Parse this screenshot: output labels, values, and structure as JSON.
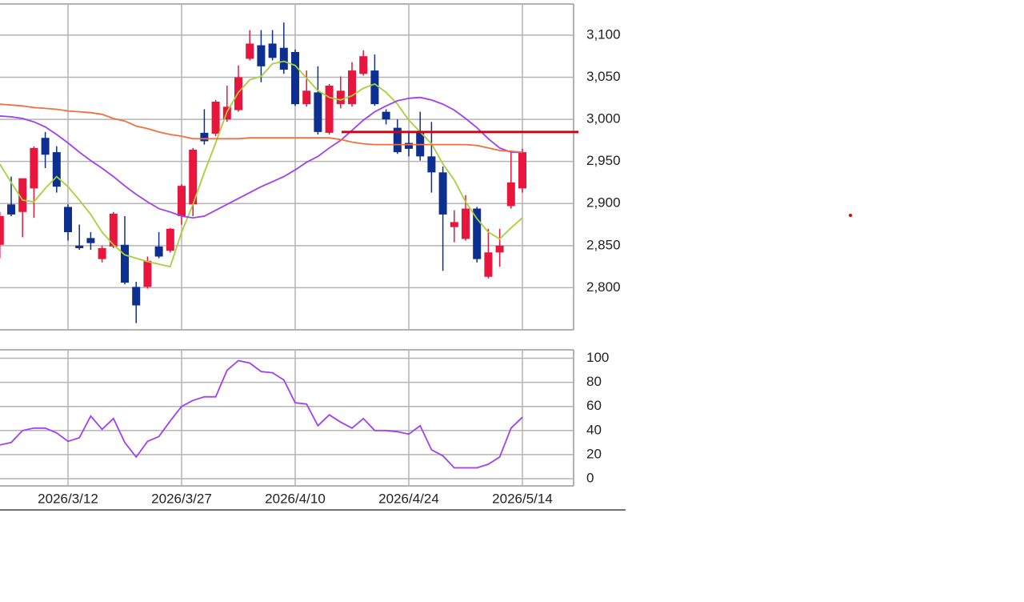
{
  "chart_data": [
    {
      "type": "candlestick",
      "open": [
        2851,
        2899,
        2890,
        2918,
        2978,
        2961,
        2896,
        2850,
        2859,
        2834,
        2849,
        2851,
        2801,
        2801,
        2849,
        2844,
        2885,
        2899,
        2984,
        2983,
        3000,
        3011,
        3072,
        3088,
        3090,
        3085,
        3080,
        3018,
        3032,
        2984,
        3018,
        3018,
        3054,
        3058,
        3009,
        2990,
        2972,
        2985,
        2956,
        2937,
        2872,
        2858,
        2894,
        2813,
        2842,
        2897,
        2918
      ],
      "high": [
        2890,
        2932,
        2930,
        2968,
        2985,
        2968,
        2899,
        2875,
        2866,
        2850,
        2890,
        2885,
        2807,
        2837,
        2866,
        2871,
        2923,
        2966,
        3012,
        3023,
        3040,
        3064,
        3106,
        3106,
        3106,
        3115,
        3083,
        3058,
        3063,
        3042,
        3051,
        3068,
        3082,
        3077,
        3012,
        3000,
        2985,
        3009,
        2997,
        2944,
        2892,
        2910,
        2896,
        2870,
        2870,
        2963,
        2965
      ],
      "low": [
        2835,
        2885,
        2860,
        2883,
        2942,
        2913,
        2856,
        2845,
        2845,
        2830,
        2847,
        2804,
        2758,
        2799,
        2835,
        2842,
        2875,
        2885,
        2970,
        2980,
        2997,
        3009,
        3070,
        3044,
        3070,
        3054,
        3016,
        3015,
        2982,
        2982,
        3013,
        3015,
        3052,
        3016,
        2994,
        2959,
        2956,
        2951,
        2913,
        2820,
        2854,
        2856,
        2830,
        2811,
        2825,
        2894,
        2913
      ],
      "close": [
        2885,
        2887,
        2930,
        2966,
        2958,
        2920,
        2866,
        2847,
        2853,
        2847,
        2888,
        2806,
        2779,
        2832,
        2837,
        2870,
        2921,
        2964,
        2974,
        3021,
        3015,
        3050,
        3090,
        3063,
        3073,
        3059,
        3018,
        3034,
        2985,
        3040,
        3034,
        3058,
        3075,
        3018,
        3000,
        2961,
        2965,
        2956,
        2937,
        2887,
        2878,
        2894,
        2834,
        2842,
        2850,
        2925,
        2961
      ],
      "up_color": "#e8163c",
      "down_color": "#0d2f8f",
      "lines": [
        {
          "color": "#a5d13a",
          "values": [
            2947,
            2925,
            2904,
            2902,
            2918,
            2932,
            2920,
            2904,
            2887,
            2866,
            2851,
            2839,
            2835,
            2831,
            2828,
            2825,
            2866,
            2899,
            2937,
            2972,
            3009,
            3032,
            3047,
            3051,
            3066,
            3069,
            3064,
            3049,
            3034,
            3026,
            3023,
            3028,
            3037,
            3042,
            3032,
            3018,
            2999,
            2985,
            2971,
            2947,
            2928,
            2902,
            2882,
            2866,
            2858,
            2871,
            2883
          ]
        },
        {
          "color": "#a040f0",
          "values": [
            3004,
            3003,
            3001,
            2997,
            2991,
            2982,
            2972,
            2961,
            2951,
            2942,
            2932,
            2921,
            2911,
            2902,
            2894,
            2890,
            2885,
            2883,
            2885,
            2892,
            2899,
            2906,
            2913,
            2920,
            2926,
            2932,
            2940,
            2949,
            2956,
            2966,
            2975,
            2987,
            2999,
            3009,
            3016,
            3022,
            3025,
            3026,
            3023,
            3018,
            3011,
            3001,
            2990,
            2977,
            2966,
            2961,
            2961
          ]
        },
        {
          "color": "#f07040",
          "values": [
            3018,
            3017,
            3016,
            3014,
            3013,
            3012,
            3010,
            3009,
            3008,
            3006,
            3001,
            2998,
            2992,
            2989,
            2985,
            2982,
            2980,
            2977,
            2977,
            2977,
            2977,
            2977,
            2978,
            2978,
            2978,
            2978,
            2978,
            2978,
            2978,
            2978,
            2976,
            2973,
            2971,
            2970,
            2970,
            2970,
            2970,
            2970,
            2970,
            2970,
            2970,
            2970,
            2969,
            2966,
            2963,
            2962,
            2961
          ]
        }
      ],
      "reference_line": {
        "value": 2985,
        "color": "#d80010"
      },
      "ylim": [
        2750,
        3137
      ],
      "yticks": [
        {
          "value": 2800,
          "label": "2,800"
        },
        {
          "value": 2850,
          "label": "2,850"
        },
        {
          "value": 2900,
          "label": "2,900"
        },
        {
          "value": 2950,
          "label": "2,950"
        },
        {
          "value": 3000,
          "label": "3,000"
        },
        {
          "value": 3050,
          "label": "3,050"
        },
        {
          "value": 3100,
          "label": "3,100"
        }
      ],
      "grid": true
    },
    {
      "type": "line",
      "categories": [
        null,
        null,
        null,
        null,
        null,
        null,
        "2026/3/12",
        null,
        null,
        null,
        null,
        null,
        null,
        null,
        null,
        null,
        "2026/3/27",
        null,
        null,
        null,
        null,
        null,
        null,
        null,
        null,
        null,
        "2026/4/10",
        null,
        null,
        null,
        null,
        null,
        null,
        null,
        null,
        null,
        "2026/4/24",
        null,
        null,
        null,
        null,
        null,
        null,
        null,
        null,
        null,
        "2026/5/14"
      ],
      "values": [
        28,
        30,
        40,
        42,
        42,
        38,
        31,
        34,
        52,
        41,
        50,
        30,
        18,
        31,
        35,
        48,
        60,
        65,
        68,
        68,
        90,
        98,
        96,
        89,
        88,
        82,
        63,
        62,
        44,
        53,
        47,
        42,
        50,
        40,
        40,
        39,
        37,
        44,
        24,
        19,
        9,
        9,
        9,
        12,
        18,
        42,
        51
      ],
      "color": "#a040f0",
      "ylim": [
        -6,
        107
      ],
      "yticks": [
        0,
        20,
        40,
        60,
        80,
        100
      ],
      "grid": true
    }
  ]
}
